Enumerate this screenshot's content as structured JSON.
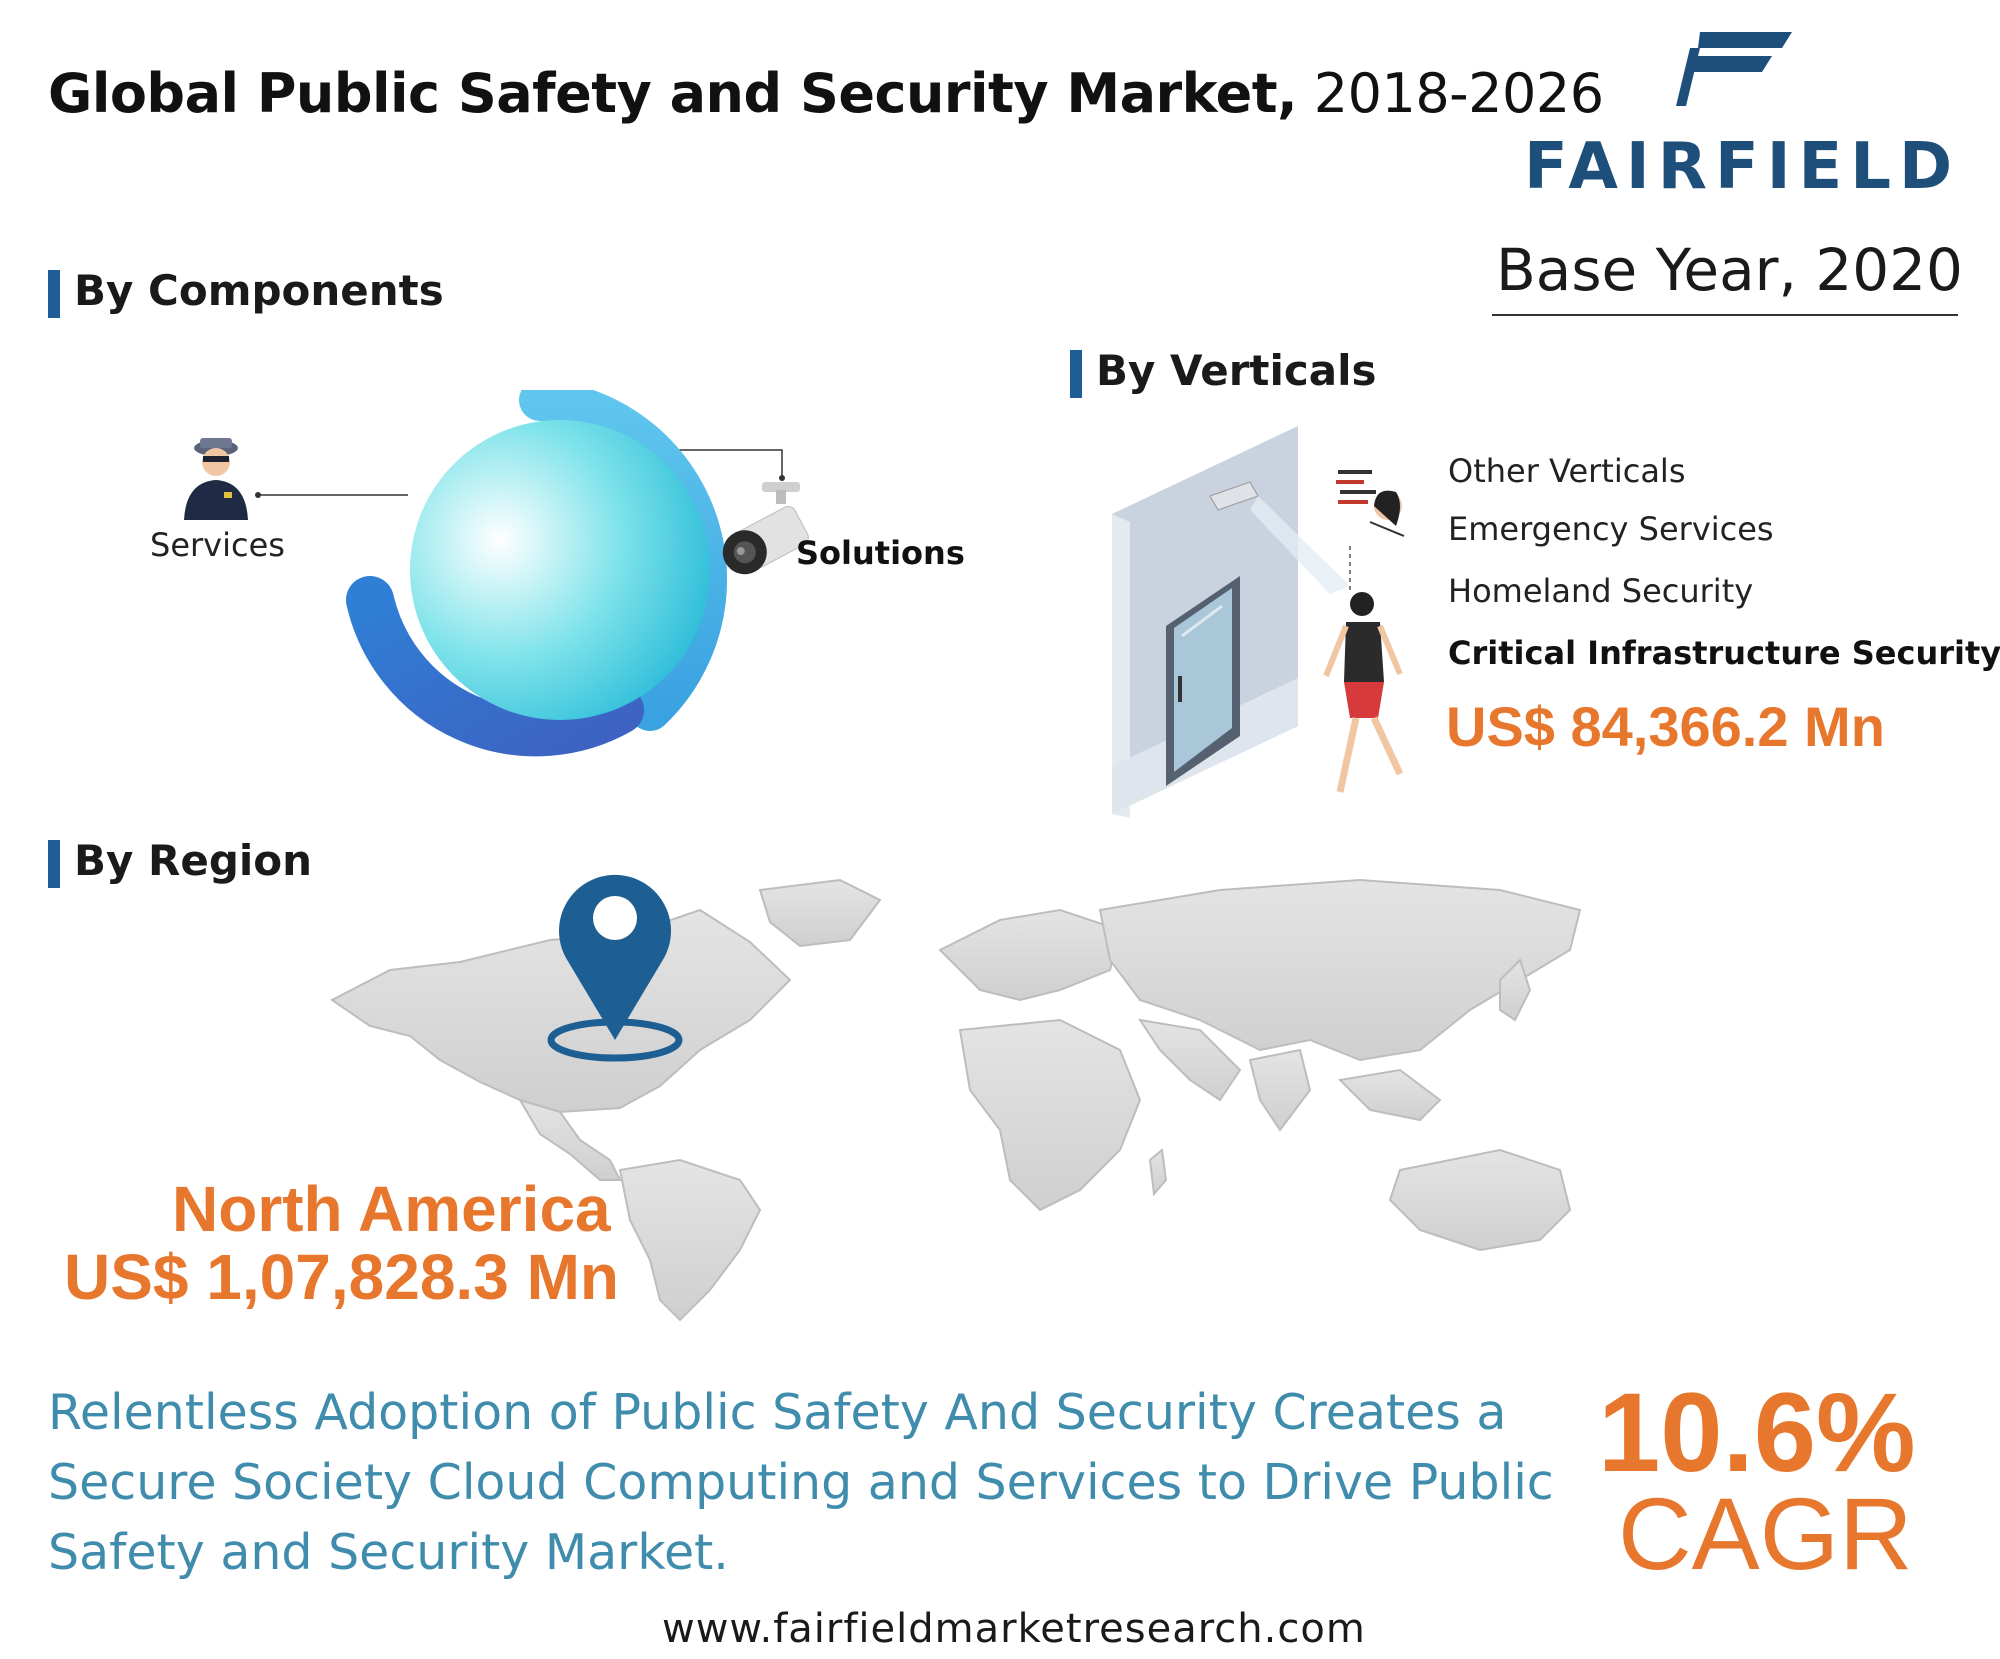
{
  "header": {
    "title_bold": "Global Public Safety and Security Market,",
    "title_years": " 2018-2026",
    "brand": "FAIRFIELD",
    "base_year": "Base Year, 2020"
  },
  "components": {
    "heading": "By Components",
    "items": [
      "Services",
      "Solutions"
    ],
    "icons": [
      "security-guard-icon",
      "cctv-camera-icon"
    ]
  },
  "verticals": {
    "heading": "By Verticals",
    "items": [
      "Other Verticals",
      "Emergency Services",
      "Homeland Security",
      "Critical Infrastructure Security"
    ],
    "highlight_value": "US$ 84,366.2 Mn"
  },
  "region": {
    "heading": "By Region",
    "name": "North America",
    "value": "US$ 1,07,828.3 Mn"
  },
  "footer": {
    "tagline": "Relentless Adoption of Public Safety And Security Creates a Secure Society Cloud Computing and Services to Drive Public Safety and Security Market.",
    "cagr_value": "10.6%",
    "cagr_label": "CAGR",
    "website": "www.fairfieldmarketresearch.com"
  },
  "colors": {
    "accent_orange": "#e8772e",
    "brand_blue": "#1d4f7a",
    "heading_bar": "#1f5d97",
    "tagline_blue": "#3f8cad",
    "map_gray": "#d6d6d6"
  }
}
